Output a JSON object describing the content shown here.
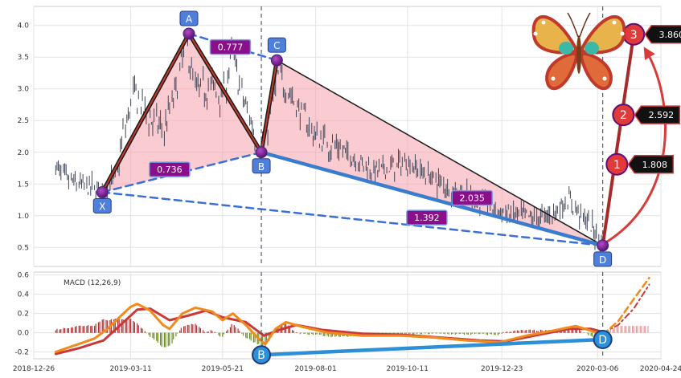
{
  "chart_data": [
    {
      "type": "line",
      "subtype": "candlestick-with-harmonic-pattern",
      "ylim": [
        0.2,
        4.3
      ],
      "yticks": [
        0.5,
        1.0,
        1.5,
        2.0,
        2.5,
        3.0,
        3.5,
        4.0
      ],
      "ytick_labels": [
        "0.5",
        "1.0",
        "1.5",
        "2.0",
        "2.5",
        "3.0",
        "3.5",
        "4.0"
      ],
      "xlim": [
        "2018-12-26",
        "2020-04-24"
      ],
      "xticks": [
        "2018-12-26",
        "2019-03-11",
        "2019-05-21",
        "2019-08-01",
        "2019-10-11",
        "2019-12-23",
        "2020-03-06",
        "2020-04-24"
      ],
      "grid": true,
      "price_path": [
        [
          "2019-01-12",
          1.78
        ],
        [
          "2019-01-22",
          1.55
        ],
        [
          "2019-02-03",
          1.47
        ],
        [
          "2019-02-18",
          1.38
        ],
        [
          "2019-02-28",
          1.6
        ],
        [
          "2019-03-06",
          2.3
        ],
        [
          "2019-03-14",
          2.95
        ],
        [
          "2019-03-25",
          2.55
        ],
        [
          "2019-04-06",
          2.35
        ],
        [
          "2019-04-15",
          2.95
        ],
        [
          "2019-04-23",
          3.7
        ],
        [
          "2019-05-01",
          2.95
        ],
        [
          "2019-05-13",
          3.05
        ],
        [
          "2019-05-21",
          2.85
        ],
        [
          "2019-05-29",
          3.55
        ],
        [
          "2019-06-06",
          2.85
        ],
        [
          "2019-06-14",
          2.4
        ],
        [
          "2019-06-20",
          2.05
        ],
        [
          "2019-06-26",
          2.45
        ],
        [
          "2019-07-03",
          3.2
        ],
        [
          "2019-07-11",
          3.0
        ],
        [
          "2019-07-20",
          2.65
        ],
        [
          "2019-08-01",
          2.25
        ],
        [
          "2019-08-16",
          2.1
        ],
        [
          "2019-09-01",
          1.9
        ],
        [
          "2019-09-16",
          1.7
        ],
        [
          "2019-10-01",
          1.78
        ],
        [
          "2019-10-11",
          1.85
        ],
        [
          "2019-10-26",
          1.65
        ],
        [
          "2019-11-11",
          1.45
        ],
        [
          "2019-11-26",
          1.3
        ],
        [
          "2019-12-11",
          1.2
        ],
        [
          "2019-12-23",
          1.05
        ],
        [
          "2020-01-06",
          1.0
        ],
        [
          "2020-01-21",
          0.95
        ],
        [
          "2020-02-01",
          1.05
        ],
        [
          "2020-02-13",
          1.25
        ],
        [
          "2020-02-21",
          1.05
        ],
        [
          "2020-03-01",
          0.85
        ],
        [
          "2020-03-10",
          0.55
        ]
      ],
      "pattern_points": [
        {
          "label": "X",
          "date": "2019-02-17",
          "value": 1.37
        },
        {
          "label": "A",
          "date": "2019-04-25",
          "value": 3.87
        },
        {
          "label": "B",
          "date": "2019-06-20",
          "value": 2.0
        },
        {
          "label": "C",
          "date": "2019-07-02",
          "value": 3.45
        },
        {
          "label": "D",
          "date": "2020-03-10",
          "value": 0.53
        }
      ],
      "ratios": [
        {
          "label": "0.777",
          "date": "2019-05-27",
          "value": 3.66
        },
        {
          "label": "0.736",
          "date": "2019-04-10",
          "value": 1.73
        },
        {
          "label": "2.035",
          "date": "2019-11-30",
          "value": 1.28
        },
        {
          "label": "1.392",
          "date": "2019-10-26",
          "value": 0.97
        }
      ],
      "targets": [
        {
          "rank": "1",
          "label": "1.808",
          "date": "2020-03-21",
          "value": 1.81
        },
        {
          "rank": "2",
          "label": "2.592",
          "date": "2020-03-26",
          "value": 2.59
        },
        {
          "rank": "3",
          "label": "3.860",
          "date": "2020-04-03",
          "value": 3.86
        }
      ],
      "vertical_markers": [
        "2019-06-20",
        "2020-03-10"
      ]
    },
    {
      "type": "line",
      "subtype": "macd",
      "title": "MACD (12,26,9)",
      "ylim": [
        -0.27,
        0.63
      ],
      "yticks": [
        -0.2,
        0.0,
        0.2,
        0.4,
        0.6
      ],
      "ytick_labels": [
        "-0.2",
        "0.0",
        "0.2",
        "0.4",
        "0.6"
      ],
      "xlim": [
        "2018-12-26",
        "2020-04-24"
      ],
      "grid": true,
      "macd_line": [
        [
          "2019-01-12",
          -0.2
        ],
        [
          "2019-01-27",
          -0.13
        ],
        [
          "2019-02-11",
          -0.06
        ],
        [
          "2019-02-21",
          0.04
        ],
        [
          "2019-03-03",
          0.17
        ],
        [
          "2019-03-11",
          0.27
        ],
        [
          "2019-03-16",
          0.3
        ],
        [
          "2019-03-26",
          0.23
        ],
        [
          "2019-04-05",
          0.08
        ],
        [
          "2019-04-10",
          0.04
        ],
        [
          "2019-04-20",
          0.2
        ],
        [
          "2019-04-30",
          0.26
        ],
        [
          "2019-05-13",
          0.22
        ],
        [
          "2019-05-21",
          0.13
        ],
        [
          "2019-05-29",
          0.2
        ],
        [
          "2019-06-08",
          0.08
        ],
        [
          "2019-06-17",
          -0.05
        ],
        [
          "2019-06-23",
          -0.12
        ],
        [
          "2019-07-01",
          0.04
        ],
        [
          "2019-07-09",
          0.11
        ],
        [
          "2019-07-22",
          0.06
        ],
        [
          "2019-08-11",
          0.0
        ],
        [
          "2019-09-06",
          -0.03
        ],
        [
          "2019-10-06",
          -0.03
        ],
        [
          "2019-11-01",
          -0.05
        ],
        [
          "2019-11-26",
          -0.08
        ],
        [
          "2019-12-21",
          -0.1
        ],
        [
          "2020-01-11",
          -0.03
        ],
        [
          "2020-01-31",
          0.02
        ],
        [
          "2020-02-18",
          0.07
        ],
        [
          "2020-03-01",
          0.02
        ],
        [
          "2020-03-10",
          -0.02
        ]
      ],
      "signal_line": [
        [
          "2019-01-12",
          -0.22
        ],
        [
          "2019-01-30",
          -0.16
        ],
        [
          "2019-02-18",
          -0.08
        ],
        [
          "2019-03-03",
          0.08
        ],
        [
          "2019-03-16",
          0.24
        ],
        [
          "2019-03-26",
          0.25
        ],
        [
          "2019-04-10",
          0.13
        ],
        [
          "2019-04-25",
          0.18
        ],
        [
          "2019-05-08",
          0.23
        ],
        [
          "2019-05-21",
          0.16
        ],
        [
          "2019-06-08",
          0.11
        ],
        [
          "2019-06-22",
          -0.03
        ],
        [
          "2019-07-04",
          0.03
        ],
        [
          "2019-07-17",
          0.08
        ],
        [
          "2019-08-06",
          0.03
        ],
        [
          "2019-09-06",
          -0.01
        ],
        [
          "2019-10-06",
          -0.02
        ],
        [
          "2019-11-06",
          -0.05
        ],
        [
          "2019-12-06",
          -0.08
        ],
        [
          "2019-12-26",
          -0.09
        ],
        [
          "2020-01-21",
          -0.02
        ],
        [
          "2020-02-13",
          0.04
        ],
        [
          "2020-03-01",
          0.04
        ],
        [
          "2020-03-10",
          0.01
        ]
      ],
      "forecast_macd": [
        [
          "2020-03-10",
          -0.02
        ],
        [
          "2020-03-22",
          0.12
        ],
        [
          "2020-04-03",
          0.35
        ],
        [
          "2020-04-15",
          0.57
        ]
      ],
      "forecast_signal": [
        [
          "2020-03-10",
          0.0
        ],
        [
          "2020-03-22",
          0.08
        ],
        [
          "2020-04-03",
          0.25
        ],
        [
          "2020-04-15",
          0.5
        ]
      ],
      "divergence": [
        {
          "label": "B",
          "date": "2019-06-20",
          "value": -0.23
        },
        {
          "label": "D",
          "date": "2020-03-10",
          "value": -0.07
        }
      ]
    }
  ]
}
